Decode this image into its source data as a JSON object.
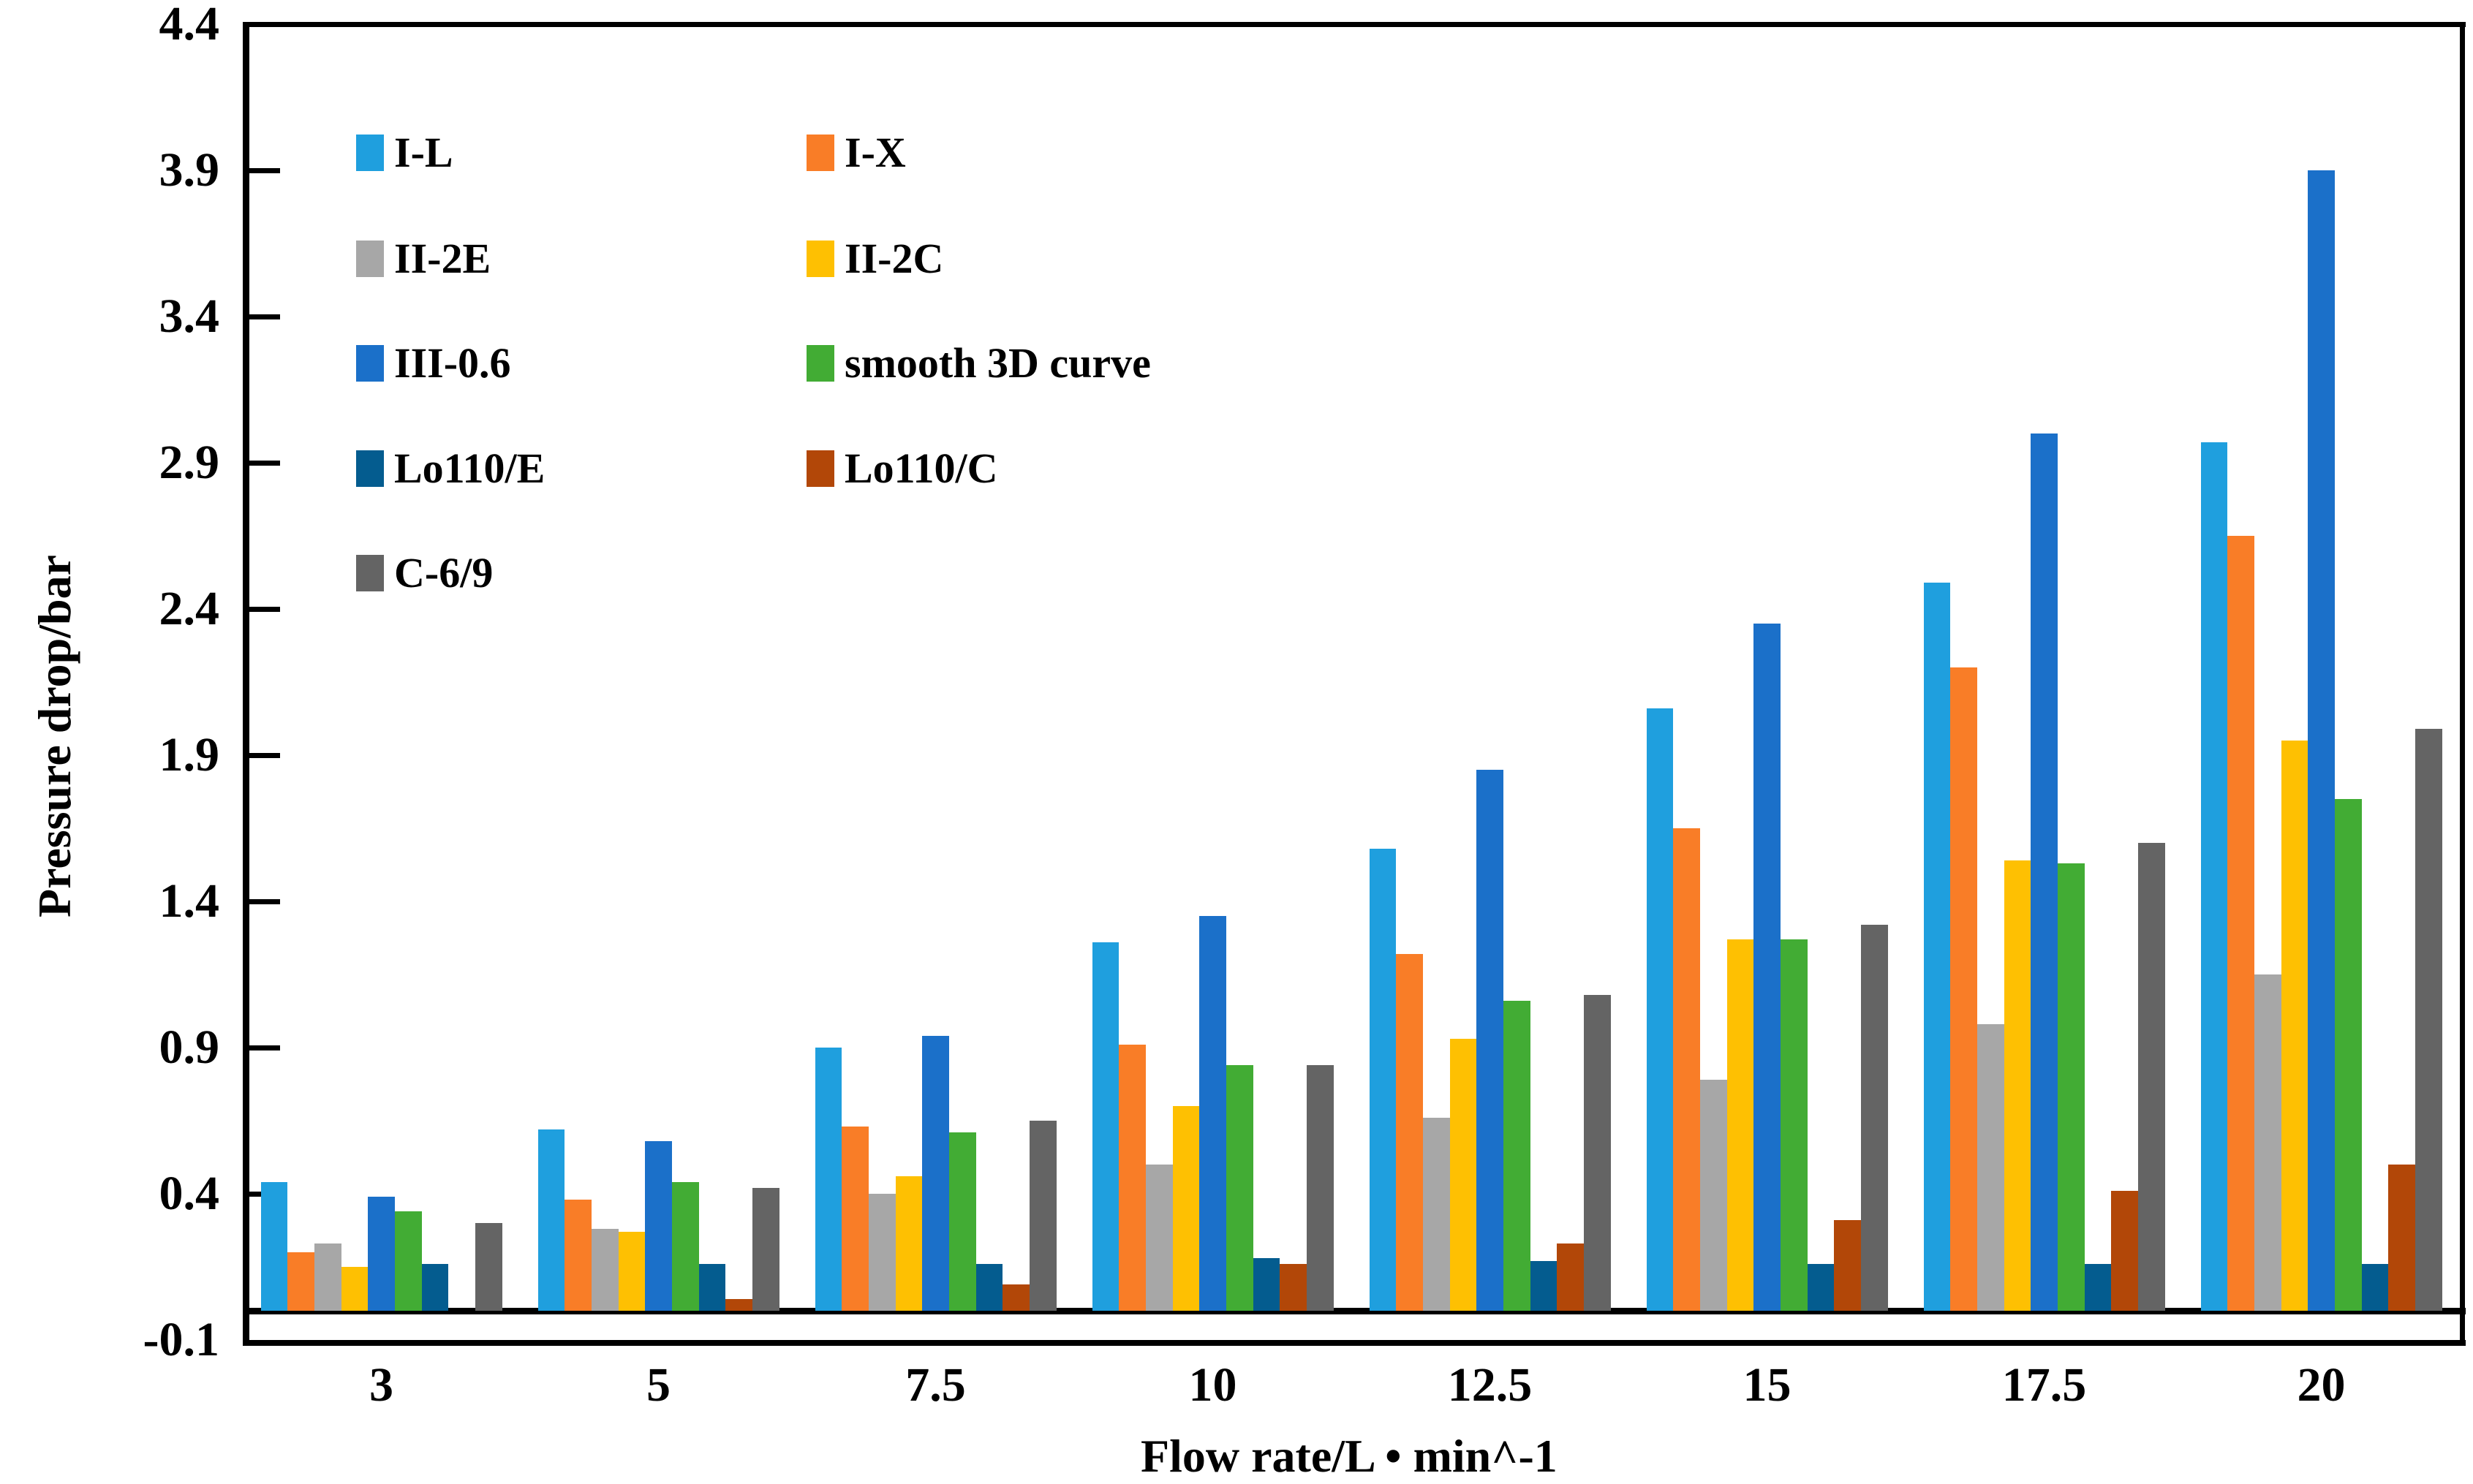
{
  "chart_data": {
    "type": "bar",
    "title": "",
    "xlabel": "Flow rate/L • min^-1",
    "ylabel": "Pressure drop/bar",
    "categories": [
      "3",
      "5",
      "7.5",
      "10",
      "12.5",
      "15",
      "17.5",
      "20"
    ],
    "ylim": [
      -0.1,
      4.4
    ],
    "yticks": [
      4.4,
      3.9,
      3.4,
      2.9,
      2.4,
      1.9,
      1.4,
      0.9,
      0.4,
      -0.1
    ],
    "grid": "off",
    "legend_position": "inside-top-left",
    "legend_columns": 2,
    "series": [
      {
        "name": "I-L",
        "color": "#1F9FDE",
        "values": [
          0.44,
          0.62,
          0.9,
          1.26,
          1.58,
          2.06,
          2.49,
          2.97
        ]
      },
      {
        "name": "I-X",
        "color": "#F97D27",
        "values": [
          0.2,
          0.38,
          0.63,
          0.91,
          1.22,
          1.65,
          2.2,
          2.65
        ]
      },
      {
        "name": "II-2E",
        "color": "#A7A7A7",
        "values": [
          0.23,
          0.28,
          0.4,
          0.5,
          0.66,
          0.79,
          0.98,
          1.15
        ]
      },
      {
        "name": "II-2C",
        "color": "#FEC002",
        "values": [
          0.15,
          0.27,
          0.46,
          0.7,
          0.93,
          1.27,
          1.54,
          1.95
        ]
      },
      {
        "name": "III-0.6",
        "color": "#1B70C9",
        "values": [
          0.39,
          0.58,
          0.94,
          1.35,
          1.85,
          2.35,
          3.0,
          3.9
        ]
      },
      {
        "name": "smooth 3D curve",
        "color": "#42AC34",
        "values": [
          0.34,
          0.44,
          0.61,
          0.84,
          1.06,
          1.27,
          1.53,
          1.75
        ]
      },
      {
        "name": "Lo110/E",
        "color": "#045C8F",
        "values": [
          0.16,
          0.16,
          0.16,
          0.18,
          0.17,
          0.16,
          0.16,
          0.16
        ]
      },
      {
        "name": "Lo110/C",
        "color": "#B24708",
        "values": [
          0.0,
          0.04,
          0.09,
          0.16,
          0.23,
          0.31,
          0.41,
          0.5
        ]
      },
      {
        "name": "C-6/9",
        "color": "#646464",
        "values": [
          0.3,
          0.42,
          0.65,
          0.84,
          1.08,
          1.32,
          1.6,
          1.99
        ]
      }
    ]
  }
}
